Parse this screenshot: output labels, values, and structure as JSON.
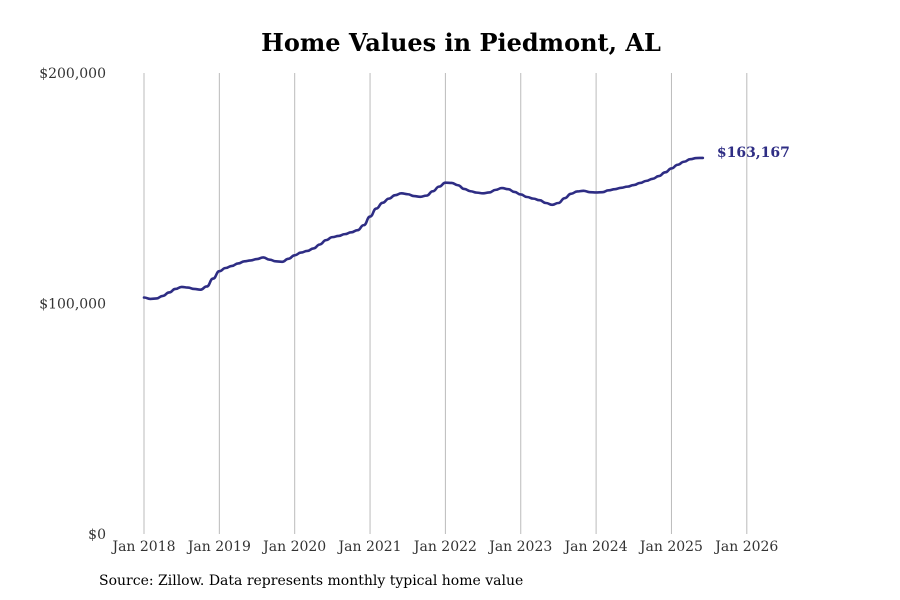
{
  "title": "Home Values in Piedmont, AL",
  "source": "Source: Zillow. Data represents monthly typical home value",
  "colors": {
    "line": "#2e2d84",
    "grid": "#bbbbbb"
  },
  "chart_data": {
    "type": "line",
    "title": "Home Values in Piedmont, AL",
    "xlabel": "",
    "ylabel": "",
    "ylim": [
      0,
      200000
    ],
    "xlim": [
      "2018-01",
      "2026-06"
    ],
    "y_ticks": [
      {
        "value": 0,
        "label": "$0"
      },
      {
        "value": 100000,
        "label": "$100,000"
      },
      {
        "value": 200000,
        "label": "$200,000"
      }
    ],
    "x_ticks": [
      {
        "value": "2018-01",
        "label": "Jan 2018"
      },
      {
        "value": "2019-01",
        "label": "Jan 2019"
      },
      {
        "value": "2020-01",
        "label": "Jan 2020"
      },
      {
        "value": "2021-01",
        "label": "Jan 2021"
      },
      {
        "value": "2022-01",
        "label": "Jan 2022"
      },
      {
        "value": "2023-01",
        "label": "Jan 2023"
      },
      {
        "value": "2024-01",
        "label": "Jan 2024"
      },
      {
        "value": "2025-01",
        "label": "Jan 2025"
      },
      {
        "value": "2026-01",
        "label": "Jan 2026"
      }
    ],
    "grid": {
      "vertical": true,
      "horizontal": false
    },
    "end_label": "$163,167",
    "series": [
      {
        "values": [
          [
            "2018-01",
            102600
          ],
          [
            "2018-02",
            102000
          ],
          [
            "2018-03",
            102200
          ],
          [
            "2018-04",
            103300
          ],
          [
            "2018-05",
            104800
          ],
          [
            "2018-06",
            106300
          ],
          [
            "2018-07",
            107200
          ],
          [
            "2018-08",
            106900
          ],
          [
            "2018-09",
            106300
          ],
          [
            "2018-10",
            106000
          ],
          [
            "2018-11",
            107400
          ],
          [
            "2018-12",
            110800
          ],
          [
            "2019-01",
            114000
          ],
          [
            "2019-02",
            115400
          ],
          [
            "2019-03",
            116300
          ],
          [
            "2019-04",
            117400
          ],
          [
            "2019-05",
            118300
          ],
          [
            "2019-06",
            118700
          ],
          [
            "2019-07",
            119300
          ],
          [
            "2019-08",
            120000
          ],
          [
            "2019-09",
            119000
          ],
          [
            "2019-10",
            118300
          ],
          [
            "2019-11",
            118100
          ],
          [
            "2019-12",
            119400
          ],
          [
            "2020-01",
            120900
          ],
          [
            "2020-02",
            122100
          ],
          [
            "2020-03",
            122800
          ],
          [
            "2020-04",
            123900
          ],
          [
            "2020-05",
            125600
          ],
          [
            "2020-06",
            127500
          ],
          [
            "2020-07",
            128800
          ],
          [
            "2020-08",
            129300
          ],
          [
            "2020-09",
            130100
          ],
          [
            "2020-10",
            130900
          ],
          [
            "2020-11",
            131800
          ],
          [
            "2020-12",
            134000
          ],
          [
            "2021-01",
            137700
          ],
          [
            "2021-02",
            141200
          ],
          [
            "2021-03",
            143700
          ],
          [
            "2021-04",
            145500
          ],
          [
            "2021-05",
            147000
          ],
          [
            "2021-06",
            147800
          ],
          [
            "2021-07",
            147400
          ],
          [
            "2021-08",
            146600
          ],
          [
            "2021-09",
            146300
          ],
          [
            "2021-10",
            146800
          ],
          [
            "2021-11",
            148700
          ],
          [
            "2021-12",
            150700
          ],
          [
            "2022-01",
            152400
          ],
          [
            "2022-02",
            152300
          ],
          [
            "2022-03",
            151300
          ],
          [
            "2022-04",
            149700
          ],
          [
            "2022-05",
            148700
          ],
          [
            "2022-06",
            148100
          ],
          [
            "2022-07",
            147800
          ],
          [
            "2022-08",
            148200
          ],
          [
            "2022-09",
            149300
          ],
          [
            "2022-10",
            150100
          ],
          [
            "2022-11",
            149600
          ],
          [
            "2022-12",
            148400
          ],
          [
            "2023-01",
            147300
          ],
          [
            "2023-02",
            146200
          ],
          [
            "2023-03",
            145500
          ],
          [
            "2023-04",
            144800
          ],
          [
            "2023-05",
            143600
          ],
          [
            "2023-06",
            142800
          ],
          [
            "2023-07",
            143600
          ],
          [
            "2023-08",
            145700
          ],
          [
            "2023-09",
            147600
          ],
          [
            "2023-10",
            148600
          ],
          [
            "2023-11",
            148900
          ],
          [
            "2023-12",
            148300
          ],
          [
            "2024-01",
            148200
          ],
          [
            "2024-02",
            148300
          ],
          [
            "2024-03",
            149100
          ],
          [
            "2024-04",
            149600
          ],
          [
            "2024-05",
            150200
          ],
          [
            "2024-06",
            150700
          ],
          [
            "2024-07",
            151400
          ],
          [
            "2024-08",
            152300
          ],
          [
            "2024-09",
            153200
          ],
          [
            "2024-10",
            154100
          ],
          [
            "2024-11",
            155300
          ],
          [
            "2024-12",
            156900
          ],
          [
            "2025-01",
            158600
          ],
          [
            "2025-02",
            160200
          ],
          [
            "2025-03",
            161500
          ],
          [
            "2025-04",
            162600
          ],
          [
            "2025-05",
            163100
          ],
          [
            "2025-06",
            163167
          ]
        ]
      }
    ]
  }
}
